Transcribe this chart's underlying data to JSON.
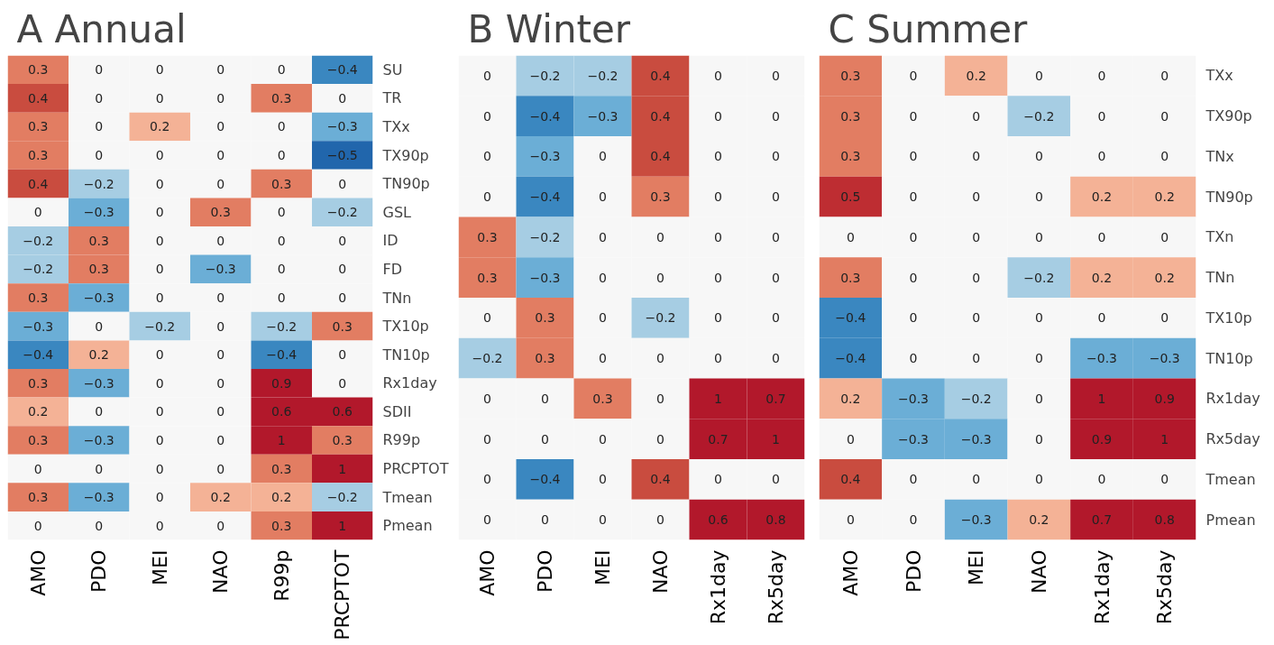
{
  "chart_data": [
    {
      "type": "heatmap",
      "title": "A Annual",
      "data_labels": true,
      "grid": false,
      "categories": [
        "AMO",
        "PDO",
        "MEI",
        "NAO",
        "R99p",
        "PRCPTOT"
      ],
      "y_categories": [
        "SU",
        "TR",
        "TXx",
        "TX90p",
        "TN90p",
        "GSL",
        "ID",
        "FD",
        "TNn",
        "TX10p",
        "TN10p",
        "Rx1day",
        "SDII",
        "R99p",
        "PRCPTOT",
        "Tmean",
        "Pmean"
      ],
      "cells": [
        [
          0.3,
          0,
          0,
          0,
          0,
          -0.4
        ],
        [
          0.4,
          0,
          0,
          0,
          0.3,
          0
        ],
        [
          0.3,
          0,
          0.2,
          0,
          0,
          -0.3
        ],
        [
          0.3,
          0,
          0,
          0,
          0,
          -0.5
        ],
        [
          0.4,
          -0.2,
          0,
          0,
          0.3,
          0
        ],
        [
          0,
          -0.3,
          0,
          0.3,
          0,
          -0.2
        ],
        [
          -0.2,
          0.3,
          0,
          0,
          0,
          0
        ],
        [
          -0.2,
          0.3,
          0,
          -0.3,
          0,
          0
        ],
        [
          0.3,
          -0.3,
          0,
          0,
          0,
          0
        ],
        [
          -0.3,
          0,
          -0.2,
          0,
          -0.2,
          0.3
        ],
        [
          -0.4,
          0.2,
          0,
          0,
          -0.4,
          0
        ],
        [
          0.3,
          -0.3,
          0,
          0,
          0.9,
          0
        ],
        [
          0.2,
          0,
          0,
          0,
          0.6,
          0.6
        ],
        [
          0.3,
          -0.3,
          0,
          0,
          1,
          0.3
        ],
        [
          0,
          0,
          0,
          0,
          0.3,
          1
        ],
        [
          0.3,
          -0.3,
          0,
          0.2,
          0.2,
          -0.2
        ],
        [
          0,
          0,
          0,
          0,
          0.3,
          1
        ]
      ]
    },
    {
      "type": "heatmap",
      "title": "B   Winter",
      "data_labels": true,
      "grid": false,
      "categories": [
        "AMO",
        "PDO",
        "MEI",
        "NAO",
        "Rx1day",
        "Rx5day"
      ],
      "y_categories": [
        null,
        null,
        null,
        null,
        null,
        null,
        null,
        null,
        null,
        null,
        null,
        null
      ],
      "cells": [
        [
          0,
          -0.2,
          -0.2,
          0.4,
          0,
          0
        ],
        [
          0,
          -0.4,
          -0.3,
          0.4,
          0,
          0
        ],
        [
          0,
          -0.3,
          0,
          0.4,
          0,
          0
        ],
        [
          0,
          -0.4,
          0,
          0.3,
          0,
          0
        ],
        [
          0.3,
          -0.2,
          0,
          0,
          0,
          0
        ],
        [
          0.3,
          -0.3,
          0,
          0,
          0,
          0
        ],
        [
          0,
          0.3,
          0,
          -0.2,
          0,
          0
        ],
        [
          -0.2,
          0.3,
          0,
          0,
          0,
          0
        ],
        [
          0,
          0,
          0.3,
          0,
          1,
          0.7
        ],
        [
          0,
          0,
          0,
          0,
          0.7,
          1
        ],
        [
          0,
          -0.4,
          0,
          0.4,
          0,
          0
        ],
        [
          0,
          0,
          0,
          0,
          0.6,
          0.8
        ]
      ]
    },
    {
      "type": "heatmap",
      "title": "C Summer",
      "data_labels": true,
      "grid": false,
      "categories": [
        "AMO",
        "PDO",
        "MEI",
        "NAO",
        "Rx1day",
        "Rx5day"
      ],
      "y_categories": [
        "TXx",
        "TX90p",
        "TNx",
        "TN90p",
        "TXn",
        "TNn",
        "TX10p",
        "TN10p",
        "Rx1day",
        "Rx5day",
        "Tmean",
        "Pmean"
      ],
      "cells": [
        [
          0.3,
          0,
          0.2,
          0,
          0,
          0
        ],
        [
          0.3,
          0,
          0,
          -0.2,
          0,
          0
        ],
        [
          0.3,
          0,
          0,
          0,
          0,
          0
        ],
        [
          0.5,
          0,
          0,
          0,
          0.2,
          0.2
        ],
        [
          0,
          0,
          0,
          0,
          0,
          0
        ],
        [
          0.3,
          0,
          0,
          -0.2,
          0.2,
          0.2
        ],
        [
          -0.4,
          0,
          0,
          0,
          0,
          0
        ],
        [
          -0.4,
          0,
          0,
          0,
          -0.3,
          -0.3
        ],
        [
          0.2,
          -0.3,
          -0.2,
          0,
          1,
          0.9
        ],
        [
          0,
          -0.3,
          -0.3,
          0,
          0.9,
          1
        ],
        [
          0.4,
          0,
          0,
          0,
          0,
          0
        ],
        [
          0,
          0,
          -0.3,
          0.2,
          0.7,
          0.8
        ]
      ]
    }
  ]
}
